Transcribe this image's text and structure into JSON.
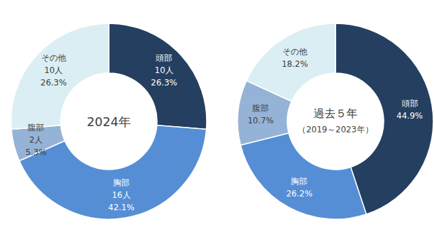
{
  "chart_data": [
    {
      "type": "pie",
      "title": "2024年",
      "categories": [
        "頭部",
        "胸部",
        "腹部",
        "その他"
      ],
      "values": [
        26.3,
        42.1,
        5.3,
        26.3
      ],
      "value_labels": [
        "26.3%",
        "42.1%",
        "5.3%",
        "26.3%"
      ],
      "counts": [
        10,
        16,
        2,
        10
      ],
      "count_labels": [
        "10人",
        "16人",
        "2人",
        "10人"
      ],
      "colors": [
        "#243f60",
        "#558ed5",
        "#95b3d7",
        "#dbeef4"
      ],
      "data_labels": true
    },
    {
      "type": "pie",
      "title": "過去５年",
      "subtitle": "（2019～2023年）",
      "categories": [
        "頭部",
        "胸部",
        "腹部",
        "その他"
      ],
      "values": [
        44.9,
        26.2,
        10.7,
        18.2
      ],
      "value_labels": [
        "44.9%",
        "26.2%",
        "10.7%",
        "18.2%"
      ],
      "colors": [
        "#243f60",
        "#558ed5",
        "#95b3d7",
        "#dbeef4"
      ],
      "data_labels": true
    }
  ]
}
